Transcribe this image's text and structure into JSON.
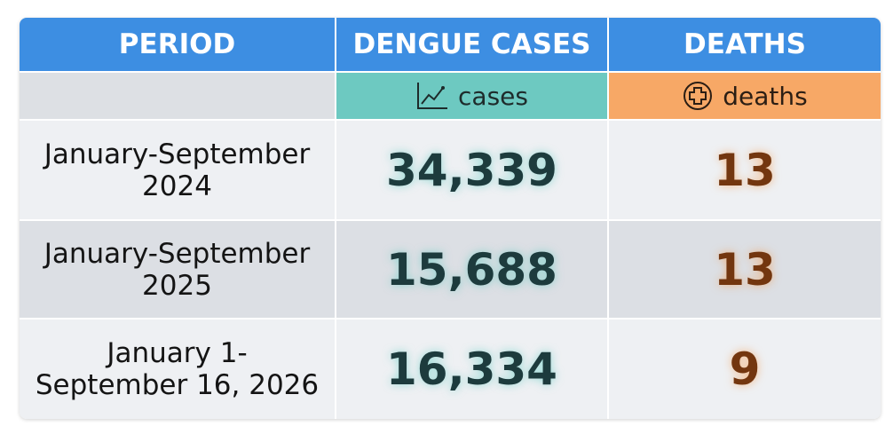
{
  "table": {
    "header": [
      "PERIOD",
      "DENGUE CASES",
      "DEATHS"
    ],
    "subheader": [
      "cases",
      "deaths"
    ],
    "rows": [
      [
        [
          "January-September",
          "2024"
        ],
        "34,339",
        "13"
      ],
      [
        [
          "January-September",
          "2025"
        ],
        "15,688",
        "13"
      ],
      [
        [
          "January 1-",
          "September 16, 2026"
        ],
        "16,334",
        "9"
      ]
    ]
  }
}
